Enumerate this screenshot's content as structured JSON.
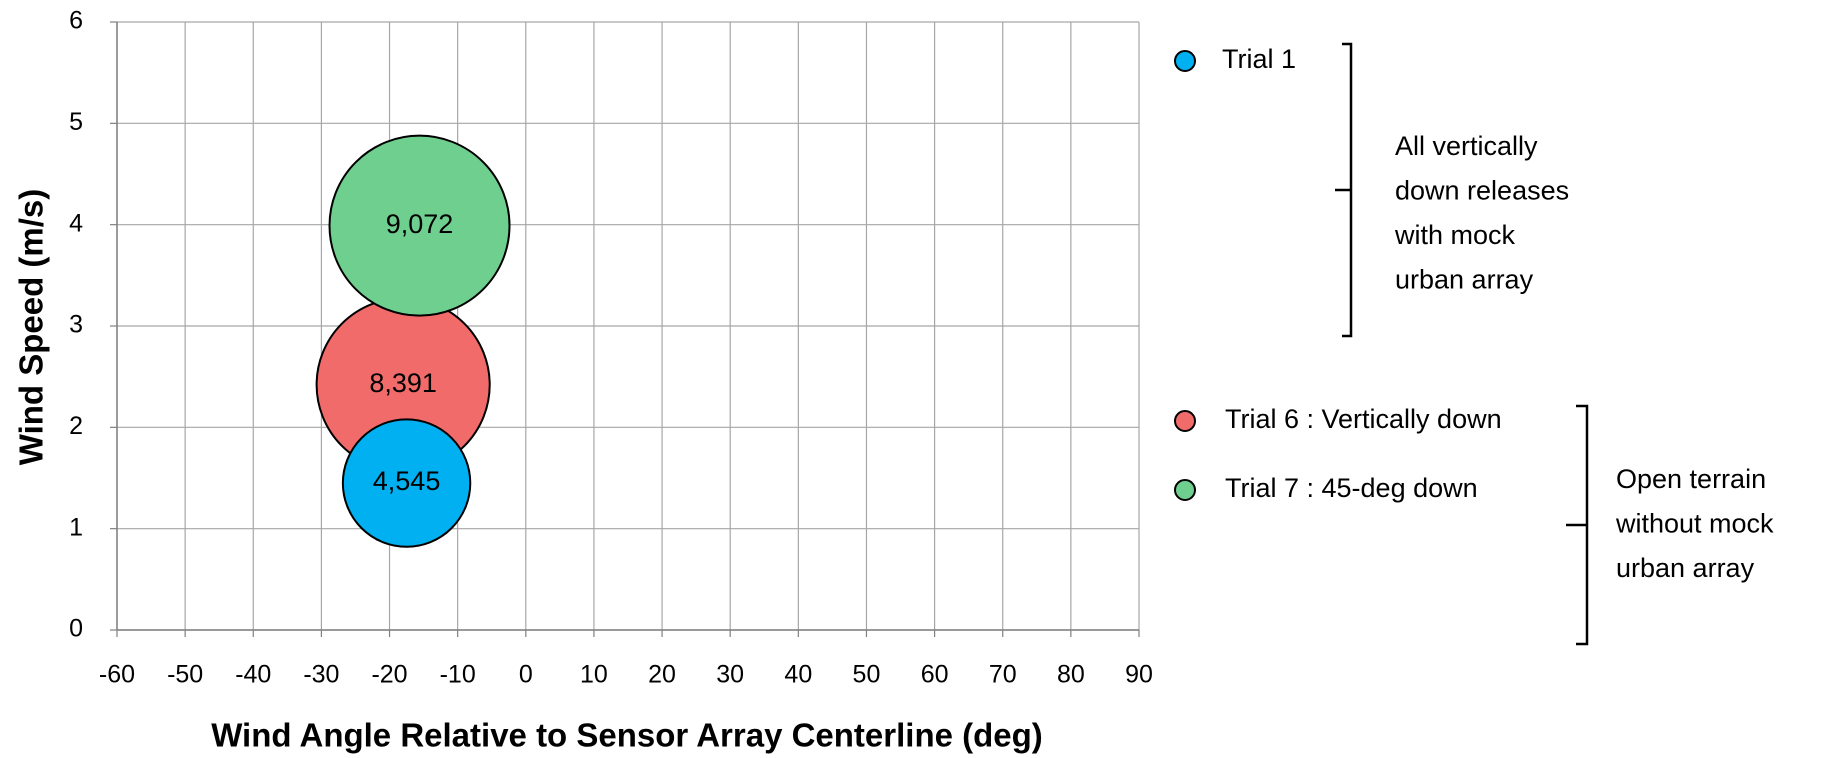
{
  "chart_data": {
    "type": "bubble",
    "x_label": "Wind Angle Relative to Sensor Array Centerline (deg)",
    "y_label": "Wind Speed (m/s)",
    "xlim": [
      -60,
      90
    ],
    "xticks": [
      -60,
      -50,
      -40,
      -30,
      -20,
      -10,
      0,
      10,
      20,
      30,
      40,
      50,
      60,
      70,
      80,
      90
    ],
    "ylim": [
      0,
      6
    ],
    "yticks": [
      0,
      1,
      2,
      3,
      4,
      5,
      6
    ],
    "grid": true,
    "series": [
      {
        "name": "Trial 1",
        "color": "#00b0f0",
        "x": [
          -17.5
        ],
        "values": [
          1.45
        ],
        "sizes": [
          4545
        ],
        "value_labels": [
          "4,545"
        ]
      },
      {
        "name": "Trial 6 : Vertically down",
        "color": "#f26b6b",
        "x": [
          -18
        ],
        "values": [
          2.42
        ],
        "sizes": [
          8391
        ],
        "value_labels": [
          "8,391"
        ]
      },
      {
        "name": "Trial 7 : 45-deg down",
        "color": "#6fcf8f",
        "x": [
          -15.6
        ],
        "values": [
          3.99
        ],
        "sizes": [
          9072
        ],
        "value_labels": [
          "9,072"
        ]
      }
    ],
    "annotations": [
      [
        "All vertically",
        "down releases",
        "with mock",
        "urban array"
      ],
      [
        "Open terrain",
        "without mock",
        "urban array"
      ]
    ]
  }
}
